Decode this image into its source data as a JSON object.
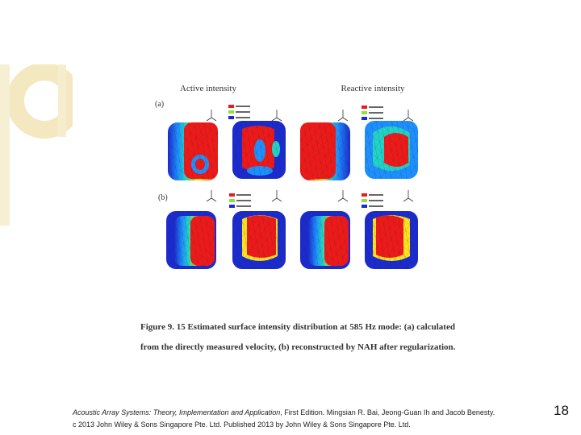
{
  "slide": {
    "accent_color": "#f2e6b8",
    "page_number": "18"
  },
  "figure": {
    "column_headers": [
      "Active intensity",
      "Reactive intensity"
    ],
    "row_labels": [
      "(a)",
      "(b)"
    ],
    "caption_line1": "Figure 9. 15 Estimated surface intensity distribution at 585 Hz mode: (a) calculated",
    "caption_line2": "from the directly measured velocity, (b) reconstructed by NAH after regularization."
  },
  "footer": {
    "book_title": "Acoustic Array Systems: Theory, Implementation and Application",
    "line1_rest": ", First Edition. Mingsian R. Bai, Jeong-Guan Ih and Jacob Benesty.",
    "line2": "c 2013 John Wiley & Sons Singapore Pte. Ltd. Published 2013 by John Wiley & Sons Singapore Pte. Ltd."
  }
}
